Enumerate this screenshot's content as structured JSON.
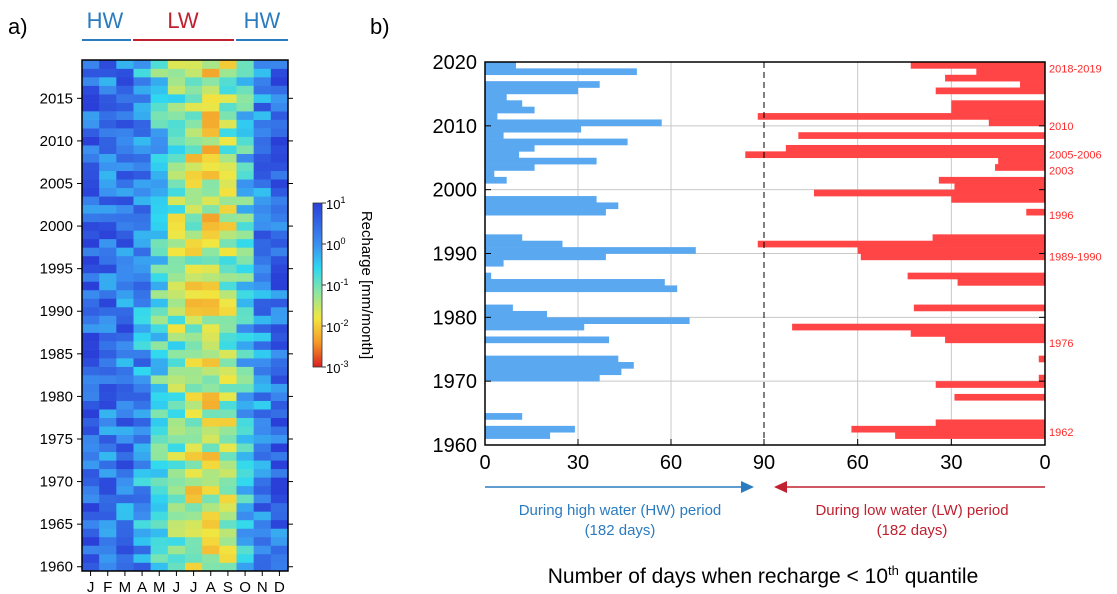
{
  "panel_a_label": "a)",
  "panel_b_label": "b)",
  "colors": {
    "hw_blue": "#5aa8f0",
    "lw_red": "#ff4545",
    "hw_text": "#2b7bbf",
    "lw_text": "#c0202f",
    "annotation_red": "#ff2a2a"
  },
  "chart_data": [
    {
      "type": "heatmap",
      "title": "",
      "season_labels": [
        "HW",
        "LW",
        "HW"
      ],
      "x_categories": [
        "J",
        "F",
        "M",
        "A",
        "M",
        "J",
        "J",
        "A",
        "S",
        "O",
        "N",
        "D"
      ],
      "y_ticks": [
        "2015",
        "2010",
        "2005",
        "2000",
        "1995",
        "1990",
        "1985",
        "1980",
        "1975",
        "1970",
        "1965",
        "1960"
      ],
      "y_tick_values": [
        2015,
        2010,
        2005,
        2000,
        1995,
        1990,
        1985,
        1980,
        1975,
        1970,
        1965,
        1960
      ],
      "year_range": [
        1960,
        2019
      ],
      "colorbar_label": "Recharge [mm/month]",
      "colorbar_ticks": [
        "10^1",
        "10^0",
        "10^-1",
        "10^-2",
        "10^-3"
      ],
      "colorbar_range_log10": [
        -3,
        1
      ],
      "colormap": "jet_reversed",
      "monthly_median_log10": [
        0.45,
        0.35,
        0.25,
        -0.05,
        -0.65,
        -1.2,
        -1.5,
        -1.65,
        -1.35,
        -0.6,
        0.15,
        0.45
      ]
    },
    {
      "type": "bar",
      "orientation": "horizontal",
      "xlabel": "Number of days when recharge < 10th quantile",
      "xlabel_main": "Number of days when recharge < 10",
      "xlabel_sup": "th",
      "xlabel_tail": " quantile",
      "x_tick_labels": [
        "0",
        "30",
        "60",
        "90",
        "60",
        "30",
        "0"
      ],
      "ylim": [
        1960,
        2020
      ],
      "y_ticks": [
        "2020",
        "2010",
        "2000",
        "1990",
        "1980",
        "1970",
        "1960"
      ],
      "y_tick_values": [
        2020,
        2010,
        2000,
        1990,
        1980,
        1970,
        1960
      ],
      "hw_caption_line1": "During high water (HW) period",
      "hw_caption_line2": "(182 days)",
      "lw_caption_line1": "During low water (LW) period",
      "lw_caption_line2": "(182 days)",
      "annotations": [
        {
          "text": "2018-2019",
          "year": 2019
        },
        {
          "text": "2010",
          "year": 2010
        },
        {
          "text": "2005-2006",
          "year": 2005.5
        },
        {
          "text": "2003",
          "year": 2003
        },
        {
          "text": "1996",
          "year": 1996
        },
        {
          "text": "1989-1990",
          "year": 1989.5
        },
        {
          "text": "1976",
          "year": 1976
        },
        {
          "text": "1962",
          "year": 1962
        }
      ],
      "series": [
        {
          "name": "HW",
          "years": [
            1960,
            1961,
            1962,
            1963,
            1964,
            1965,
            1966,
            1967,
            1968,
            1969,
            1970,
            1971,
            1972,
            1973,
            1974,
            1975,
            1976,
            1977,
            1978,
            1979,
            1980,
            1981,
            1982,
            1983,
            1984,
            1985,
            1986,
            1987,
            1988,
            1989,
            1990,
            1991,
            1992,
            1993,
            1994,
            1995,
            1996,
            1997,
            1998,
            1999,
            2000,
            2001,
            2002,
            2003,
            2004,
            2005,
            2006,
            2007,
            2008,
            2009,
            2010,
            2011,
            2012,
            2013,
            2014,
            2015,
            2016,
            2017,
            2018,
            2019
          ],
          "values": [
            0,
            21,
            29,
            0,
            12,
            0,
            0,
            0,
            0,
            0,
            37,
            44,
            48,
            43,
            0,
            0,
            40,
            0,
            32,
            66,
            20,
            9,
            0,
            0,
            62,
            58,
            2,
            0,
            6,
            39,
            68,
            25,
            12,
            0,
            0,
            0,
            39,
            43,
            36,
            0,
            0,
            7,
            3,
            16,
            36,
            11,
            16,
            46,
            6,
            31,
            57,
            4,
            16,
            12,
            7,
            30,
            37,
            0,
            49,
            10
          ]
        },
        {
          "name": "LW",
          "years": [
            1960,
            1961,
            1962,
            1963,
            1964,
            1965,
            1966,
            1967,
            1968,
            1969,
            1970,
            1971,
            1972,
            1973,
            1974,
            1975,
            1976,
            1977,
            1978,
            1979,
            1980,
            1981,
            1982,
            1983,
            1984,
            1985,
            1986,
            1987,
            1988,
            1989,
            1990,
            1991,
            1992,
            1993,
            1994,
            1995,
            1996,
            1997,
            1998,
            1999,
            2000,
            2001,
            2002,
            2003,
            2004,
            2005,
            2006,
            2007,
            2008,
            2009,
            2010,
            2011,
            2012,
            2013,
            2014,
            2015,
            2016,
            2017,
            2018,
            2019
          ],
          "values": [
            0,
            48,
            62,
            35,
            0,
            0,
            0,
            29,
            0,
            35,
            2,
            0,
            0,
            2,
            0,
            0,
            32,
            43,
            81,
            0,
            0,
            42,
            0,
            0,
            0,
            28,
            44,
            0,
            0,
            59,
            60,
            92,
            36,
            0,
            0,
            0,
            6,
            0,
            30,
            74,
            29,
            34,
            0,
            16,
            15,
            96,
            83,
            0,
            79,
            0,
            18,
            92,
            30,
            30,
            0,
            35,
            8,
            32,
            22,
            43
          ]
        }
      ]
    }
  ]
}
